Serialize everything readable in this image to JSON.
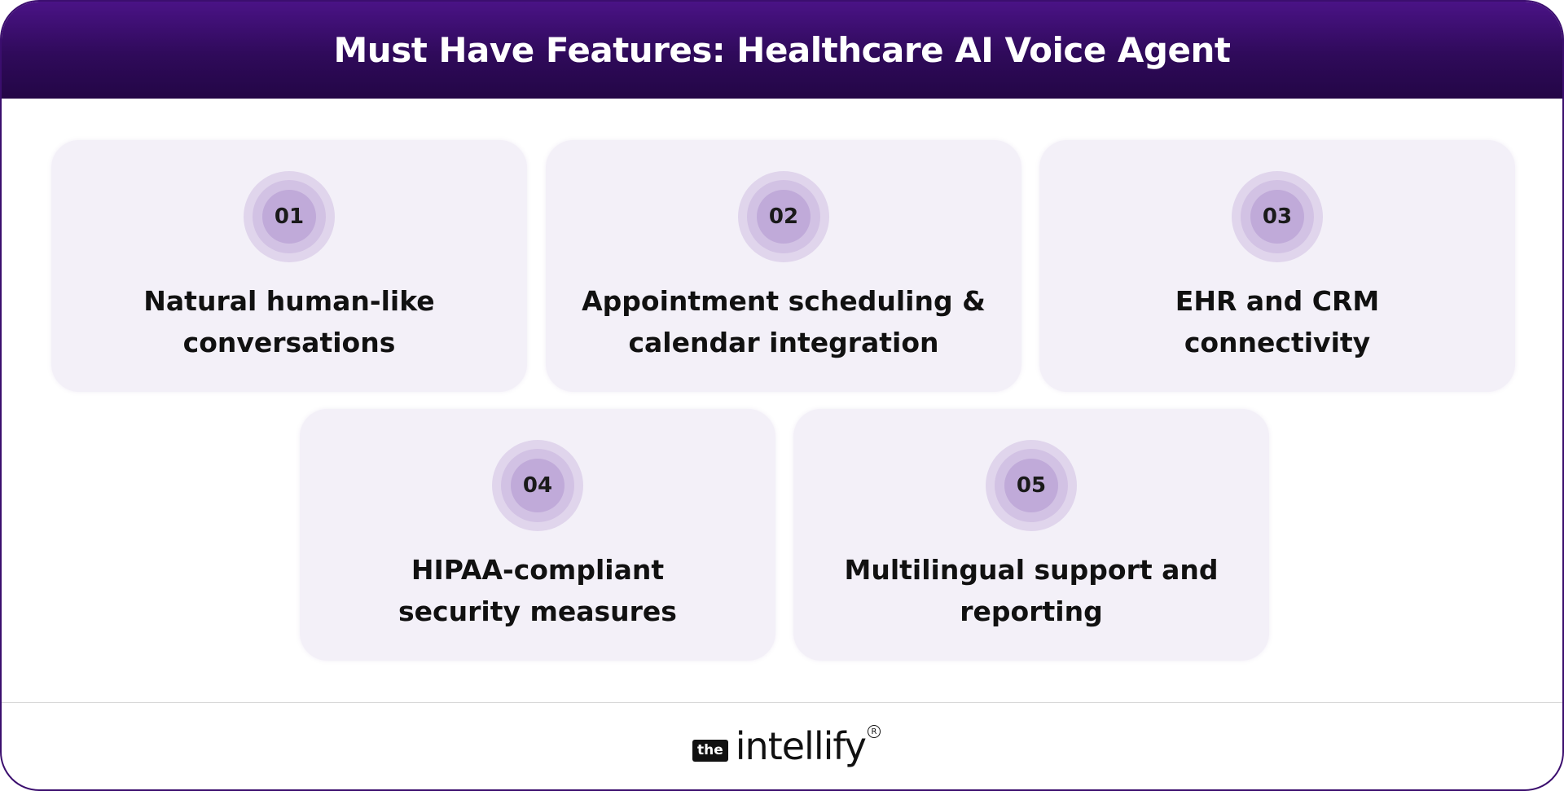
{
  "header": {
    "title": "Must Have Features: Healthcare AI Voice Agent"
  },
  "features": [
    {
      "number": "01",
      "line1": "Natural human-like",
      "line2": "conversations"
    },
    {
      "number": "02",
      "line1": "Appointment scheduling &",
      "line2": "calendar integration"
    },
    {
      "number": "03",
      "line1": "EHR and CRM",
      "line2": "connectivity"
    },
    {
      "number": "04",
      "line1": "HIPAA-compliant",
      "line2": "security measures"
    },
    {
      "number": "05",
      "line1": "Multilingual support and",
      "line2": "reporting"
    }
  ],
  "footer": {
    "logo_prefix": "the",
    "logo_word": "intellify",
    "logo_mark": "R"
  },
  "colors": {
    "header_top": "#4a1386",
    "header_bottom": "#230646",
    "card_bg": "#f3f0f8",
    "badge_outer": "#e0d5ec",
    "badge_mid": "#d2c2e4",
    "badge_inner": "#c0aad9"
  }
}
